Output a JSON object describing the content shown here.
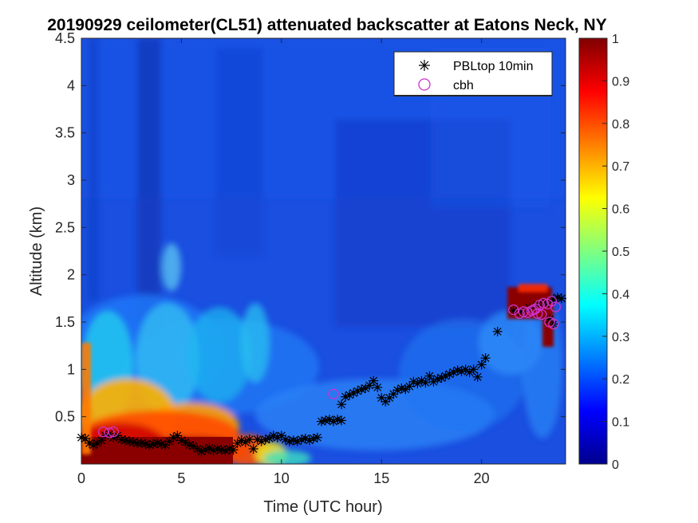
{
  "chart_data": {
    "type": "heatmap",
    "title": "20190929 ceilometer(CL51) attenuated backscatter at Eatons Neck, NY",
    "xlabel": "Time (UTC hour)",
    "ylabel": "Altitude (km)",
    "xlim": [
      0,
      24.2
    ],
    "ylim": [
      0,
      4.5
    ],
    "xticks": [
      "0",
      "5",
      "10",
      "15",
      "20"
    ],
    "yticks": [
      "0.5",
      "1",
      "1.5",
      "2",
      "2.5",
      "3",
      "3.5",
      "4",
      "4.5"
    ],
    "colorbar": {
      "colormap": "jet",
      "clim": [
        0,
        1
      ],
      "ticks": [
        "0",
        "0.1",
        "0.2",
        "0.3",
        "0.4",
        "0.5",
        "0.6",
        "0.7",
        "0.8",
        "0.9",
        "1"
      ]
    },
    "legend": {
      "position": "top-right",
      "entries": [
        {
          "label": "PBLtop 10min",
          "marker": "asterisk",
          "color": "#000000"
        },
        {
          "label": "cbh",
          "marker": "circle",
          "color": "#cc33cc"
        }
      ]
    },
    "series": [
      {
        "name": "PBLtop 10min",
        "marker": "asterisk",
        "points": [
          [
            0.0,
            0.28
          ],
          [
            0.2,
            0.27
          ],
          [
            0.4,
            0.22
          ],
          [
            0.6,
            0.2
          ],
          [
            0.8,
            0.22
          ],
          [
            1.0,
            0.25
          ],
          [
            1.2,
            0.3
          ],
          [
            1.4,
            0.32
          ],
          [
            1.6,
            0.28
          ],
          [
            1.8,
            0.3
          ],
          [
            2.0,
            0.26
          ],
          [
            2.2,
            0.25
          ],
          [
            2.4,
            0.24
          ],
          [
            2.6,
            0.23
          ],
          [
            2.8,
            0.22
          ],
          [
            3.0,
            0.22
          ],
          [
            3.2,
            0.21
          ],
          [
            3.4,
            0.2
          ],
          [
            3.6,
            0.21
          ],
          [
            3.8,
            0.22
          ],
          [
            4.0,
            0.21
          ],
          [
            4.2,
            0.2
          ],
          [
            4.4,
            0.24
          ],
          [
            4.6,
            0.28
          ],
          [
            4.8,
            0.3
          ],
          [
            5.0,
            0.25
          ],
          [
            5.2,
            0.23
          ],
          [
            5.4,
            0.2
          ],
          [
            5.6,
            0.19
          ],
          [
            5.8,
            0.16
          ],
          [
            6.0,
            0.13
          ],
          [
            6.2,
            0.15
          ],
          [
            6.4,
            0.17
          ],
          [
            6.6,
            0.14
          ],
          [
            6.8,
            0.16
          ],
          [
            7.0,
            0.15
          ],
          [
            7.2,
            0.14
          ],
          [
            7.4,
            0.16
          ],
          [
            7.6,
            0.15
          ],
          [
            7.8,
            0.22
          ],
          [
            8.0,
            0.25
          ],
          [
            8.2,
            0.23
          ],
          [
            8.4,
            0.26
          ],
          [
            8.6,
            0.16
          ],
          [
            8.8,
            0.26
          ],
          [
            9.0,
            0.24
          ],
          [
            9.2,
            0.26
          ],
          [
            9.4,
            0.27
          ],
          [
            9.6,
            0.3
          ],
          [
            9.8,
            0.28
          ],
          [
            10.0,
            0.3
          ],
          [
            10.2,
            0.26
          ],
          [
            10.4,
            0.24
          ],
          [
            10.6,
            0.25
          ],
          [
            10.8,
            0.24
          ],
          [
            11.0,
            0.26
          ],
          [
            11.2,
            0.27
          ],
          [
            11.4,
            0.25
          ],
          [
            11.6,
            0.27
          ],
          [
            11.8,
            0.28
          ],
          [
            12.0,
            0.45
          ],
          [
            12.2,
            0.46
          ],
          [
            12.4,
            0.47
          ],
          [
            12.6,
            0.45
          ],
          [
            12.8,
            0.47
          ],
          [
            13.0,
            0.46
          ],
          [
            13.0,
            0.63
          ],
          [
            13.2,
            0.71
          ],
          [
            13.4,
            0.73
          ],
          [
            13.6,
            0.75
          ],
          [
            13.8,
            0.77
          ],
          [
            14.0,
            0.79
          ],
          [
            14.2,
            0.8
          ],
          [
            14.4,
            0.83
          ],
          [
            14.6,
            0.88
          ],
          [
            14.8,
            0.81
          ],
          [
            15.0,
            0.7
          ],
          [
            15.2,
            0.66
          ],
          [
            15.4,
            0.7
          ],
          [
            15.6,
            0.74
          ],
          [
            15.8,
            0.78
          ],
          [
            16.0,
            0.8
          ],
          [
            16.2,
            0.79
          ],
          [
            16.4,
            0.82
          ],
          [
            16.6,
            0.87
          ],
          [
            16.8,
            0.85
          ],
          [
            17.0,
            0.88
          ],
          [
            17.2,
            0.86
          ],
          [
            17.4,
            0.93
          ],
          [
            17.6,
            0.87
          ],
          [
            17.8,
            0.9
          ],
          [
            18.0,
            0.91
          ],
          [
            18.2,
            0.93
          ],
          [
            18.4,
            0.95
          ],
          [
            18.6,
            0.97
          ],
          [
            18.8,
            0.99
          ],
          [
            19.0,
            0.98
          ],
          [
            19.2,
            1.0
          ],
          [
            19.4,
            0.97
          ],
          [
            19.6,
            1.0
          ],
          [
            19.8,
            0.92
          ],
          [
            20.0,
            1.05
          ],
          [
            20.2,
            1.12
          ],
          [
            20.8,
            1.4
          ],
          [
            21.6,
            1.62
          ],
          [
            22.0,
            1.61
          ],
          [
            22.4,
            1.65
          ],
          [
            22.8,
            1.68
          ],
          [
            23.2,
            1.7
          ],
          [
            23.6,
            1.74
          ],
          [
            23.8,
            1.76
          ],
          [
            24.0,
            1.75
          ],
          [
            23.4,
            1.53
          ],
          [
            23.6,
            1.48
          ]
        ]
      },
      {
        "name": "cbh",
        "marker": "circle",
        "points": [
          [
            1.1,
            0.34
          ],
          [
            1.4,
            0.33
          ],
          [
            1.6,
            0.34
          ],
          [
            12.6,
            0.74
          ],
          [
            21.6,
            1.63
          ],
          [
            21.9,
            1.59
          ],
          [
            22.1,
            1.61
          ],
          [
            22.3,
            1.6
          ],
          [
            22.5,
            1.62
          ],
          [
            22.7,
            1.64
          ],
          [
            22.9,
            1.68
          ],
          [
            23.1,
            1.7
          ],
          [
            23.3,
            1.69
          ],
          [
            23.5,
            1.72
          ],
          [
            22.6,
            1.63
          ],
          [
            22.8,
            1.59
          ],
          [
            23.0,
            1.58
          ],
          [
            23.4,
            1.5
          ],
          [
            23.6,
            1.48
          ],
          [
            23.7,
            1.66
          ]
        ]
      }
    ]
  }
}
